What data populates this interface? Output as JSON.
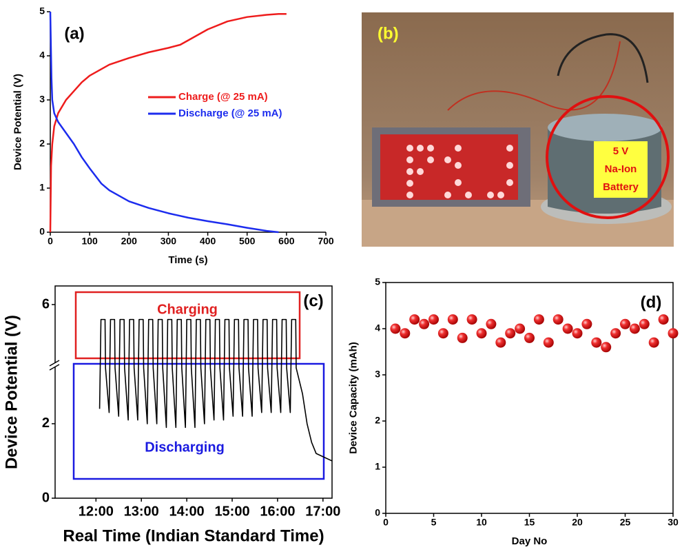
{
  "chart_data": [
    {
      "type": "line",
      "annotation": "(a)",
      "x_label": "Time (s)",
      "y_label": "Device Potential (V)",
      "xlim": [
        0,
        700
      ],
      "xticks": [
        0,
        100,
        200,
        300,
        400,
        500,
        600,
        700
      ],
      "ylim": [
        0,
        5
      ],
      "yticks": [
        0,
        1,
        2,
        3,
        4,
        5
      ],
      "series": [
        {
          "name": "Charge (@ 25 mA)",
          "color": "#ee1c1c",
          "x": [
            0,
            2,
            5,
            10,
            20,
            40,
            60,
            80,
            100,
            150,
            200,
            250,
            300,
            330,
            350,
            400,
            450,
            500,
            550,
            580,
            600
          ],
          "values": [
            0,
            1.5,
            2.0,
            2.4,
            2.7,
            3.0,
            3.2,
            3.4,
            3.55,
            3.8,
            3.95,
            4.08,
            4.18,
            4.25,
            4.35,
            4.6,
            4.78,
            4.88,
            4.93,
            4.95,
            4.95
          ]
        },
        {
          "name": "Discharge (@ 25 mA)",
          "color": "#1c2cee",
          "x": [
            0,
            1,
            3,
            5,
            10,
            20,
            40,
            60,
            80,
            100,
            130,
            150,
            200,
            250,
            300,
            350,
            400,
            450,
            500,
            550,
            580
          ],
          "values": [
            5,
            4.5,
            3.5,
            3.0,
            2.7,
            2.5,
            2.25,
            2.0,
            1.7,
            1.45,
            1.1,
            0.95,
            0.7,
            0.55,
            0.43,
            0.33,
            0.25,
            0.18,
            0.1,
            0.03,
            0.0
          ]
        }
      ]
    },
    {
      "type": "line",
      "annotation": "(c)",
      "box_labels": [
        "Charging",
        "Discharging"
      ],
      "box_colors": [
        "#e02020",
        "#1a1ae0"
      ],
      "x_label": "Real Time (Indian Standard Time)",
      "y_label": "Device Potential (V)",
      "xlim": [
        11.1,
        17.2
      ],
      "xticks": [
        {
          "value": 12,
          "label": "12:00"
        },
        {
          "value": 13,
          "label": "13:00"
        },
        {
          "value": 14,
          "label": "14:00"
        },
        {
          "value": 15,
          "label": "15:00"
        },
        {
          "value": 16,
          "label": "16:00"
        },
        {
          "value": 17,
          "label": "17:00"
        }
      ],
      "ylim": [
        0,
        6.5
      ],
      "yticks": [
        0,
        2,
        6
      ],
      "ybreak": [
        3.6,
        4.4
      ],
      "series": [
        {
          "color": "#000000",
          "x": [
            12.08,
            12.11,
            12.2,
            12.21,
            12.29,
            12.32,
            12.41,
            12.42,
            12.5,
            12.53,
            12.62,
            12.63,
            12.71,
            12.74,
            12.83,
            12.84,
            12.92,
            12.95,
            13.04,
            13.05,
            13.13,
            13.16,
            13.25,
            13.26,
            13.34,
            13.37,
            13.46,
            13.47,
            13.55,
            13.58,
            13.67,
            13.68,
            13.76,
            13.79,
            13.88,
            13.89,
            13.97,
            14.0,
            14.09,
            14.1,
            14.18,
            14.21,
            14.3,
            14.31,
            14.39,
            14.42,
            14.51,
            14.52,
            14.6,
            14.63,
            14.72,
            14.73,
            14.81,
            14.84,
            14.93,
            14.94,
            15.02,
            15.05,
            15.14,
            15.15,
            15.23,
            15.26,
            15.35,
            15.36,
            15.44,
            15.47,
            15.56,
            15.57,
            15.65,
            15.68,
            15.77,
            15.78,
            15.86,
            15.89,
            15.98,
            15.99,
            16.07,
            16.1,
            16.19,
            16.2,
            16.28,
            16.31,
            16.4,
            16.41,
            16.55,
            16.65,
            16.75,
            16.85,
            17.2
          ],
          "values": [
            2.4,
            5.6,
            5.6,
            3.5,
            2.3,
            5.6,
            5.6,
            3.5,
            2.2,
            5.6,
            5.6,
            3.5,
            2.1,
            5.6,
            5.6,
            3.5,
            2.1,
            5.6,
            5.6,
            3.5,
            2.0,
            5.6,
            5.6,
            3.5,
            2.0,
            5.6,
            5.6,
            3.5,
            1.9,
            5.6,
            5.6,
            3.5,
            1.9,
            5.6,
            5.6,
            3.5,
            1.9,
            5.6,
            5.6,
            3.5,
            1.9,
            5.6,
            5.6,
            3.5,
            2.0,
            5.6,
            5.6,
            3.5,
            2.1,
            5.6,
            5.6,
            3.5,
            2.1,
            5.6,
            5.6,
            3.5,
            2.2,
            5.6,
            5.6,
            3.5,
            2.2,
            5.6,
            5.6,
            3.5,
            2.2,
            5.6,
            5.6,
            3.5,
            2.3,
            5.6,
            5.6,
            3.5,
            2.3,
            5.6,
            5.6,
            3.5,
            2.3,
            5.6,
            5.6,
            3.5,
            2.3,
            5.6,
            5.6,
            3.5,
            2.8,
            2.0,
            1.5,
            1.2,
            1.0
          ]
        }
      ]
    },
    {
      "type": "scatter",
      "annotation": "(d)",
      "color": "#ee1c1c",
      "x_label": "Day No",
      "y_label": "Device Capacity (mAh)",
      "xlim": [
        0,
        30
      ],
      "xticks": [
        0,
        5,
        10,
        15,
        20,
        25,
        30
      ],
      "ylim": [
        0,
        5
      ],
      "yticks": [
        0,
        1,
        2,
        3,
        4,
        5
      ],
      "x": [
        1,
        2,
        3,
        4,
        5,
        6,
        7,
        8,
        9,
        10,
        11,
        12,
        13,
        14,
        15,
        16,
        17,
        18,
        19,
        20,
        21,
        22,
        23,
        24,
        25,
        26,
        27,
        28,
        29,
        30
      ],
      "values": [
        4.0,
        3.9,
        4.2,
        4.1,
        4.2,
        3.9,
        4.2,
        3.8,
        4.2,
        3.9,
        4.1,
        3.7,
        3.9,
        4.0,
        3.8,
        4.2,
        3.7,
        4.2,
        4.0,
        3.9,
        4.1,
        3.7,
        3.6,
        3.9,
        4.1,
        4.0,
        4.1,
        3.7,
        4.2,
        3.9
      ]
    }
  ],
  "photo": {
    "label": "(b)",
    "battery_label": [
      "5 V",
      "Na-Ion",
      "Battery"
    ]
  }
}
